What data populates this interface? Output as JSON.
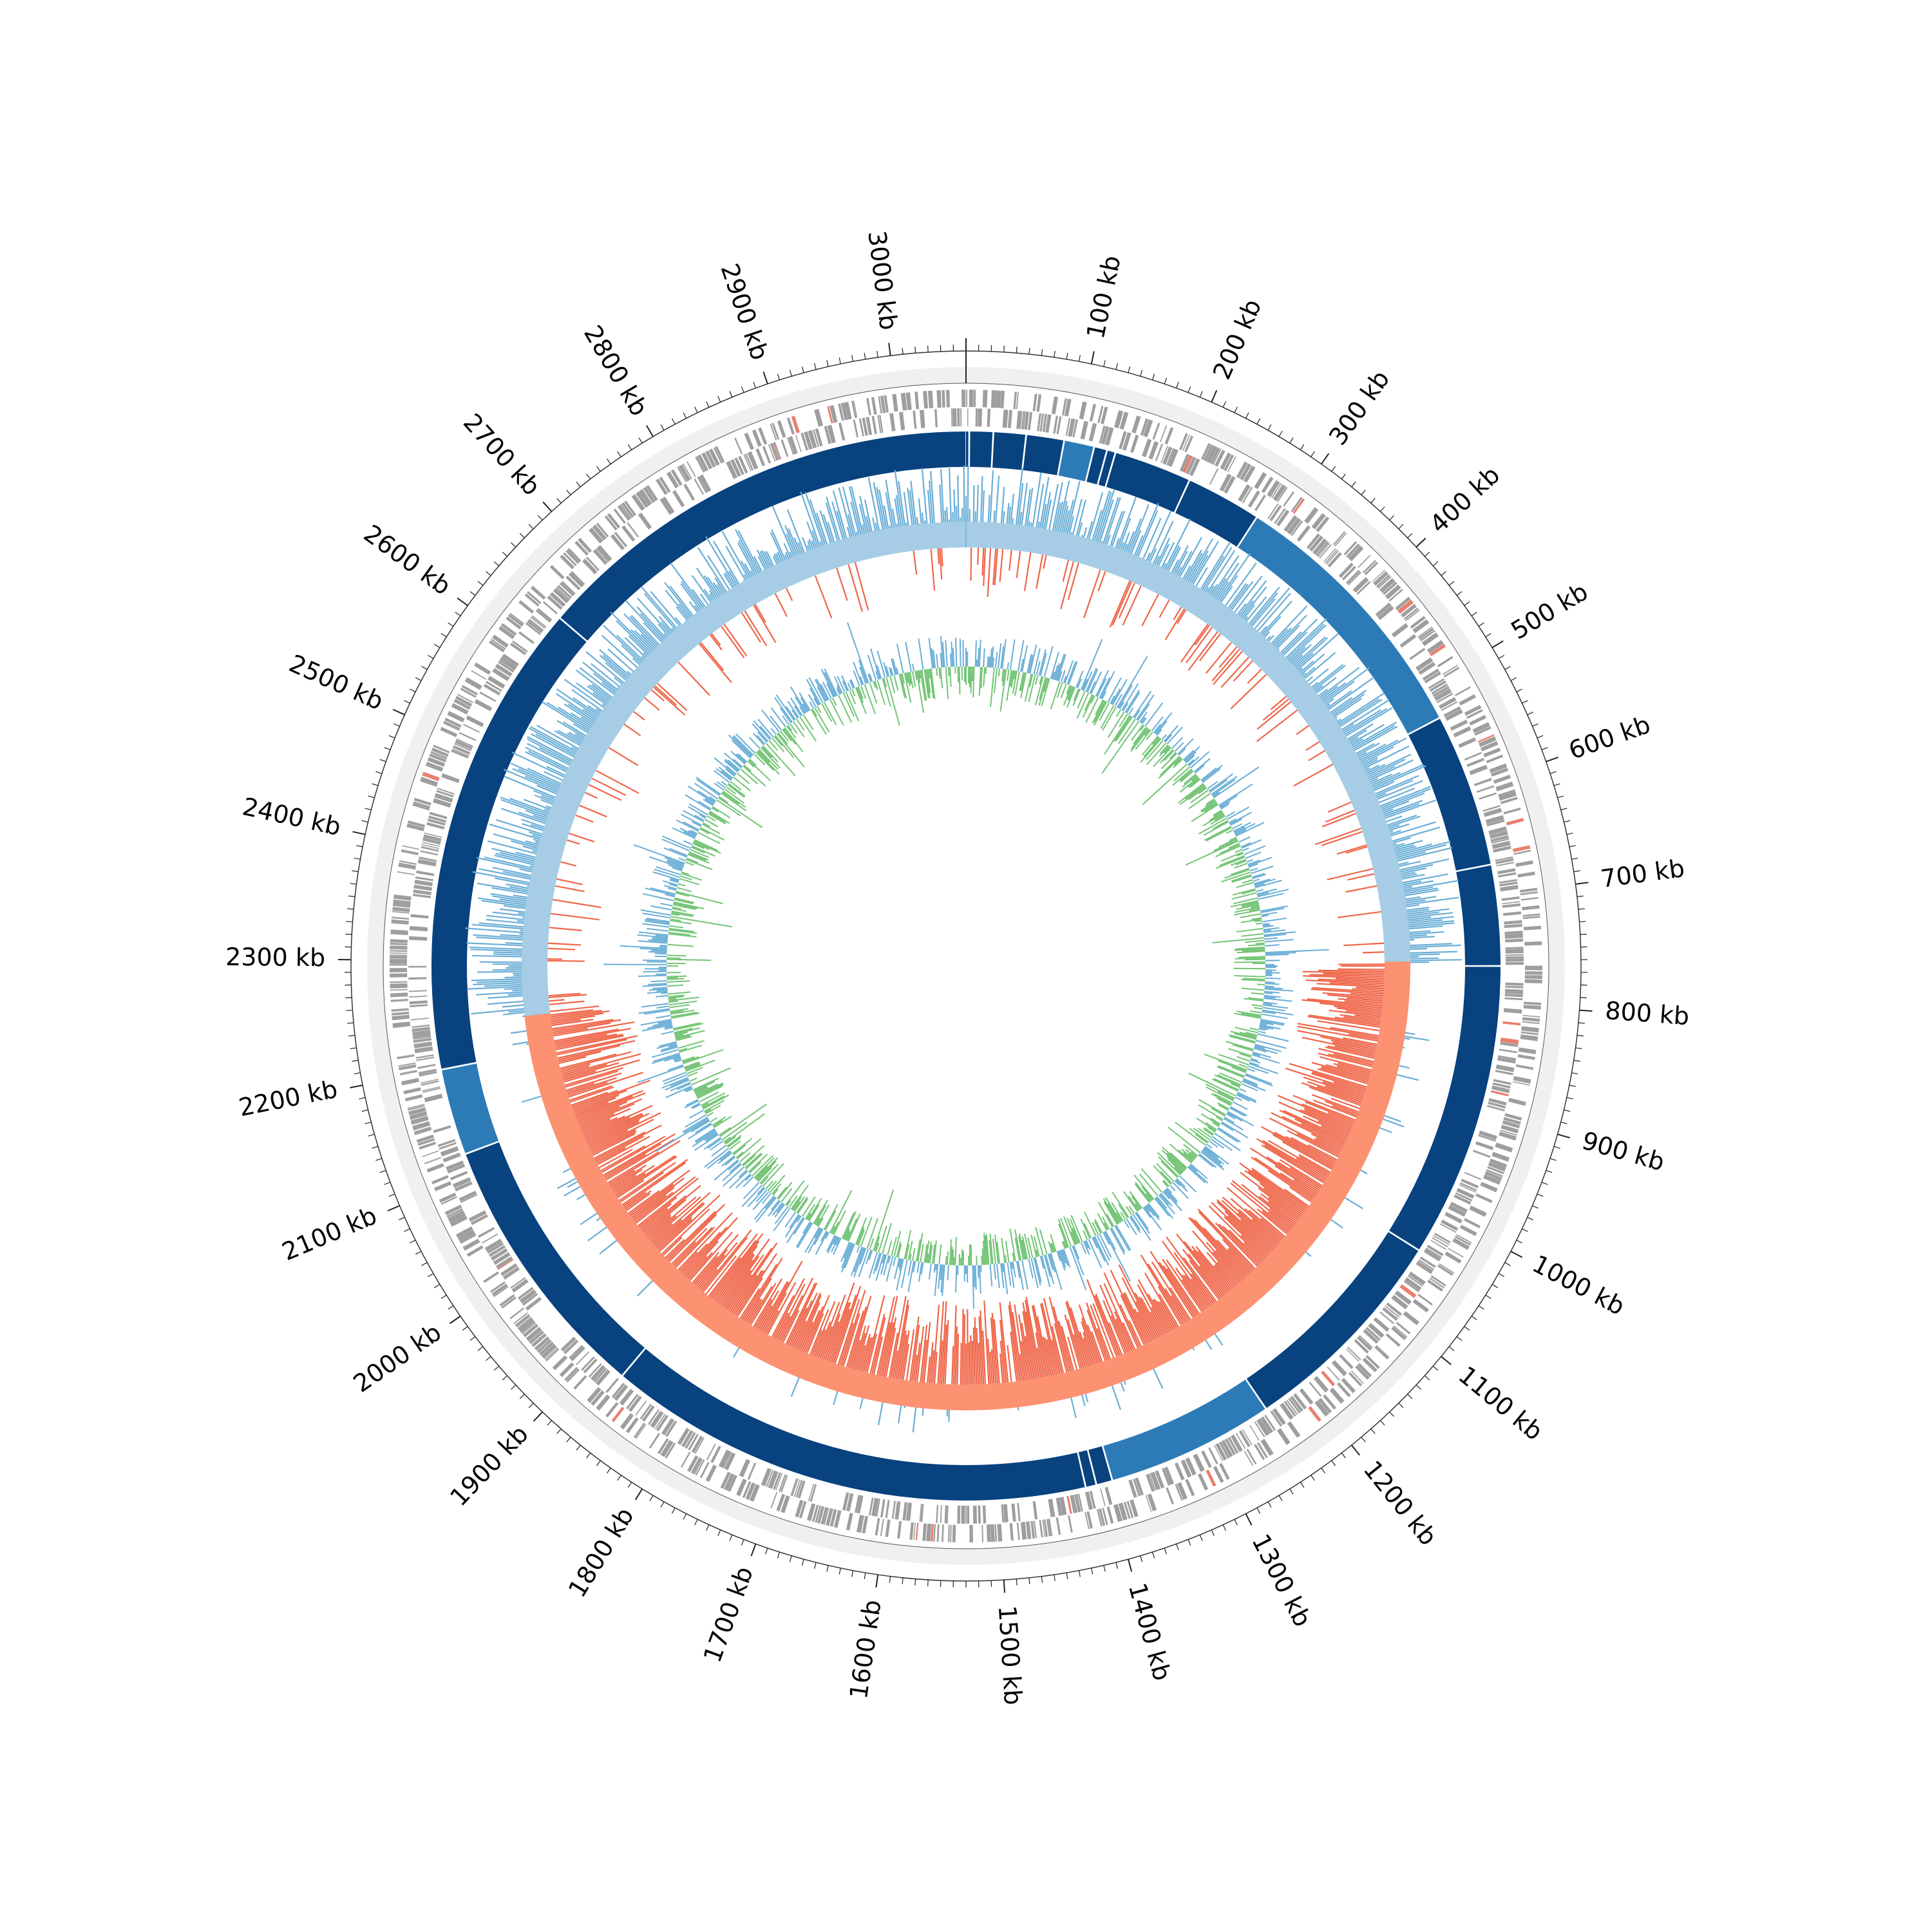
{
  "genome": {
    "length_kb": 3060,
    "tick_labels": [
      "100 kb",
      "200 kb",
      "300 kb",
      "400 kb",
      "500 kb",
      "600 kb",
      "700 kb",
      "800 kb",
      "900 kb",
      "1000 kb",
      "1100 kb",
      "1200 kb",
      "1300 kb",
      "1400 kb",
      "1500 kb",
      "1600 kb",
      "1700 kb",
      "1800 kb",
      "1900 kb",
      "2000 kb",
      "2100 kb",
      "2200 kb",
      "2300 kb",
      "2400 kb",
      "2500 kb",
      "2600 kb",
      "2700 kb",
      "2800 kb",
      "2900 kb",
      "3000 kb"
    ]
  },
  "colors": {
    "outer_band": "#f0f0f0",
    "genes": "#9e9e9e",
    "rna_genes": "#e8806e",
    "contig": "#08427f",
    "contig_alt": "#2c7bb6",
    "gc_skew_positive": "#a6cde5",
    "gc_skew_positive_line": "#6aaed6",
    "gc_skew_negative": "#fc9272",
    "gc_skew_negative_line": "#ef6548",
    "gc_content_blue": "#6aaed6",
    "gc_content_green": "#74c476"
  },
  "tracks": {
    "gc_skew_switch_kb": [
      0,
      760,
      2240
    ],
    "contig_gaps_kb": [
      3,
      25,
      55,
      90,
      118,
      130,
      138,
      210,
      280,
      530,
      672,
      765,
      1038,
      1240,
      1395,
      1410,
      1420,
      1870,
      2120,
      2200,
      2640
    ]
  }
}
